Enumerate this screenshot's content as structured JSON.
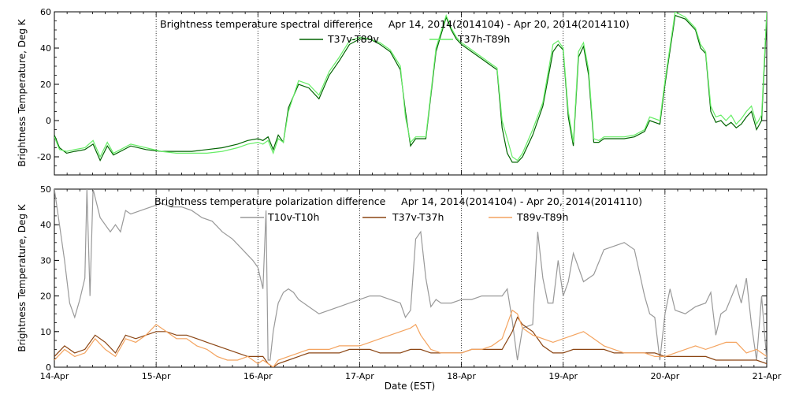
{
  "chart_data": [
    {
      "type": "line",
      "title": "Brightness temperature spectral difference     Apr 14, 2014(2014104) - Apr 20, 2014(2014110)",
      "ylabel": "Brightness Temperature, Deg K",
      "xlabel": "",
      "ylim": [
        -30,
        60
      ],
      "xlim": [
        0,
        7
      ],
      "yticks": [
        -20,
        0,
        20,
        40,
        60
      ],
      "grid": "vertical dotted at day boundaries",
      "legend_position": "top-center",
      "series": [
        {
          "name": "T37v-T89v",
          "color": "#006400",
          "x": [
            0.0,
            0.05,
            0.12,
            0.2,
            0.3,
            0.38,
            0.45,
            0.52,
            0.58,
            0.65,
            0.75,
            0.9,
            1.05,
            1.2,
            1.35,
            1.5,
            1.65,
            1.8,
            1.9,
            2.0,
            2.05,
            2.1,
            2.15,
            2.2,
            2.25,
            2.3,
            2.4,
            2.5,
            2.6,
            2.7,
            2.8,
            2.9,
            3.0,
            3.1,
            3.2,
            3.3,
            3.4,
            3.45,
            3.5,
            3.55,
            3.65,
            3.75,
            3.85,
            3.9,
            3.95,
            4.0,
            4.1,
            4.2,
            4.3,
            4.35,
            4.4,
            4.45,
            4.5,
            4.55,
            4.6,
            4.7,
            4.8,
            4.9,
            4.95,
            5.0,
            5.05,
            5.1,
            5.15,
            5.2,
            5.25,
            5.3,
            5.35,
            5.4,
            5.5,
            5.6,
            5.7,
            5.8,
            5.85,
            5.95,
            6.0,
            6.1,
            6.2,
            6.3,
            6.35,
            6.4,
            6.45,
            6.5,
            6.55,
            6.6,
            6.65,
            6.7,
            6.75,
            6.8,
            6.85,
            6.9,
            6.95,
            7.0
          ],
          "values": [
            -8,
            -15,
            -18,
            -17,
            -16,
            -13,
            -22,
            -14,
            -19,
            -17,
            -14,
            -16,
            -17,
            -17,
            -17,
            -16,
            -15,
            -13,
            -11,
            -10,
            -11,
            -9,
            -16,
            -8,
            -12,
            7,
            20,
            18,
            12,
            25,
            33,
            42,
            45,
            45,
            42,
            38,
            28,
            5,
            -14,
            -10,
            -10,
            38,
            57,
            50,
            45,
            42,
            38,
            34,
            30,
            28,
            -4,
            -18,
            -23,
            -23,
            -20,
            -8,
            8,
            38,
            42,
            39,
            2,
            -14,
            35,
            41,
            25,
            -12,
            -12,
            -10,
            -10,
            -10,
            -9,
            -6,
            0,
            -2,
            20,
            58,
            56,
            50,
            40,
            37,
            5,
            -1,
            0,
            -3,
            -1,
            -4,
            -2,
            2,
            5,
            -5,
            0,
            57
          ],
          "interpretation": "approximate values read from plot"
        },
        {
          "name": "T37h-T89h",
          "color": "#66ee66",
          "x": [
            0.0,
            0.05,
            0.12,
            0.2,
            0.3,
            0.38,
            0.45,
            0.52,
            0.58,
            0.65,
            0.75,
            0.9,
            1.05,
            1.2,
            1.35,
            1.5,
            1.65,
            1.8,
            1.9,
            2.0,
            2.05,
            2.1,
            2.15,
            2.2,
            2.25,
            2.3,
            2.4,
            2.5,
            2.6,
            2.7,
            2.8,
            2.9,
            3.0,
            3.1,
            3.2,
            3.3,
            3.4,
            3.45,
            3.5,
            3.55,
            3.65,
            3.75,
            3.85,
            3.9,
            3.95,
            4.0,
            4.1,
            4.2,
            4.3,
            4.35,
            4.4,
            4.45,
            4.5,
            4.55,
            4.6,
            4.7,
            4.8,
            4.9,
            4.95,
            5.0,
            5.05,
            5.1,
            5.15,
            5.2,
            5.25,
            5.3,
            5.35,
            5.4,
            5.5,
            5.6,
            5.7,
            5.8,
            5.85,
            5.95,
            6.0,
            6.1,
            6.2,
            6.3,
            6.35,
            6.4,
            6.45,
            6.5,
            6.55,
            6.6,
            6.65,
            6.7,
            6.75,
            6.8,
            6.85,
            6.9,
            6.95,
            7.0
          ],
          "values": [
            -9,
            -16,
            -17,
            -16,
            -15,
            -11,
            -20,
            -12,
            -18,
            -16,
            -13,
            -15,
            -17,
            -18,
            -18,
            -18,
            -17,
            -15,
            -13,
            -12,
            -13,
            -11,
            -18,
            -10,
            -12,
            5,
            22,
            20,
            14,
            27,
            35,
            44,
            46,
            45,
            43,
            39,
            30,
            2,
            -12,
            -9,
            -9,
            40,
            58,
            51,
            46,
            43,
            39,
            35,
            31,
            29,
            0,
            -10,
            -20,
            -22,
            -18,
            -5,
            10,
            42,
            44,
            40,
            5,
            -12,
            38,
            43,
            28,
            -10,
            -11,
            -9,
            -9,
            -9,
            -8,
            -5,
            2,
            0,
            22,
            60,
            57,
            51,
            42,
            38,
            8,
            2,
            3,
            0,
            3,
            -2,
            1,
            5,
            8,
            -2,
            3,
            60
          ],
          "interpretation": "approximate values read from plot"
        }
      ]
    },
    {
      "type": "line",
      "title": "Brightness temperature polarization difference     Apr 14, 2014(2014104) - Apr 20, 2014(2014110)",
      "ylabel": "Brightness Temperature, Deg K",
      "xlabel": "Date (EST)",
      "ylim": [
        0,
        50
      ],
      "xlim": [
        0,
        7
      ],
      "yticks": [
        0,
        10,
        20,
        30,
        40,
        50
      ],
      "categories": [
        "14-Apr",
        "15-Apr",
        "16-Apr",
        "17-Apr",
        "18-Apr",
        "19-Apr",
        "20-Apr",
        "21-Apr"
      ],
      "grid": "vertical dotted at day boundaries",
      "legend_position": "top-center",
      "series": [
        {
          "name": "T10v-T10h",
          "color": "#999999",
          "x": [
            0.0,
            0.05,
            0.1,
            0.15,
            0.2,
            0.25,
            0.3,
            0.32,
            0.35,
            0.38,
            0.45,
            0.55,
            0.6,
            0.65,
            0.7,
            0.75,
            0.85,
            0.95,
            1.05,
            1.15,
            1.25,
            1.35,
            1.45,
            1.55,
            1.65,
            1.75,
            1.85,
            1.95,
            2.0,
            2.05,
            2.08,
            2.1,
            2.12,
            2.15,
            2.2,
            2.25,
            2.3,
            2.35,
            2.4,
            2.5,
            2.6,
            2.7,
            2.8,
            2.9,
            3.0,
            3.1,
            3.2,
            3.3,
            3.4,
            3.45,
            3.5,
            3.55,
            3.6,
            3.65,
            3.7,
            3.75,
            3.8,
            3.9,
            4.0,
            4.1,
            4.2,
            4.3,
            4.4,
            4.45,
            4.5,
            4.55,
            4.6,
            4.7,
            4.75,
            4.8,
            4.85,
            4.9,
            4.95,
            5.0,
            5.05,
            5.1,
            5.15,
            5.2,
            5.3,
            5.4,
            5.5,
            5.6,
            5.7,
            5.8,
            5.85,
            5.9,
            5.95,
            6.0,
            6.05,
            6.1,
            6.2,
            6.3,
            6.4,
            6.45,
            6.5,
            6.55,
            6.6,
            6.7,
            6.75,
            6.8,
            6.85,
            6.9,
            6.95,
            7.0
          ],
          "values": [
            50,
            40,
            30,
            18,
            14,
            19,
            25,
            50,
            20,
            50,
            42,
            38,
            40,
            38,
            44,
            43,
            44,
            45,
            46,
            45,
            45,
            44,
            42,
            41,
            38,
            36,
            33,
            30,
            28,
            22,
            44,
            2,
            2,
            10,
            18,
            21,
            22,
            21,
            19,
            17,
            15,
            16,
            17,
            18,
            19,
            20,
            20,
            19,
            18,
            14,
            16,
            36,
            38,
            25,
            17,
            19,
            18,
            18,
            19,
            19,
            20,
            20,
            20,
            22,
            13,
            2,
            11,
            12,
            38,
            25,
            18,
            18,
            30,
            20,
            24,
            32,
            28,
            24,
            26,
            33,
            34,
            35,
            33,
            20,
            15,
            14,
            2,
            15,
            22,
            16,
            15,
            17,
            18,
            21,
            9,
            15,
            16,
            23,
            18,
            25,
            12,
            2,
            20,
            2
          ],
          "interpretation": "approximate values read from plot"
        },
        {
          "name": "T37v-T37h",
          "color": "#8b4513",
          "x": [
            0.0,
            0.1,
            0.2,
            0.3,
            0.4,
            0.5,
            0.6,
            0.7,
            0.8,
            0.9,
            1.0,
            1.1,
            1.2,
            1.3,
            1.4,
            1.5,
            1.6,
            1.7,
            1.8,
            1.9,
            2.0,
            2.05,
            2.1,
            2.15,
            2.2,
            2.3,
            2.4,
            2.5,
            2.6,
            2.7,
            2.8,
            2.9,
            3.0,
            3.1,
            3.2,
            3.3,
            3.4,
            3.5,
            3.6,
            3.7,
            3.8,
            3.9,
            4.0,
            4.1,
            4.2,
            4.3,
            4.4,
            4.5,
            4.55,
            4.6,
            4.7,
            4.8,
            4.9,
            5.0,
            5.1,
            5.2,
            5.3,
            5.4,
            5.5,
            5.6,
            5.7,
            5.8,
            5.9,
            6.0,
            6.1,
            6.2,
            6.3,
            6.4,
            6.5,
            6.6,
            6.7,
            6.8,
            6.9,
            7.0
          ],
          "values": [
            3,
            6,
            4,
            5,
            9,
            7,
            4,
            9,
            8,
            9,
            10,
            10,
            9,
            9,
            8,
            7,
            6,
            5,
            4,
            3,
            3,
            3,
            1,
            0,
            1,
            2,
            3,
            4,
            4,
            4,
            4,
            5,
            5,
            5,
            4,
            4,
            4,
            5,
            5,
            4,
            4,
            4,
            4,
            5,
            5,
            5,
            5,
            10,
            14,
            12,
            10,
            6,
            4,
            4,
            5,
            5,
            5,
            5,
            4,
            4,
            4,
            4,
            4,
            3,
            3,
            3,
            3,
            3,
            2,
            2,
            2,
            2,
            2,
            1
          ],
          "interpretation": "approximate values read from plot"
        },
        {
          "name": "T89v-T89h",
          "color": "#f4a460",
          "x": [
            0.0,
            0.1,
            0.2,
            0.3,
            0.4,
            0.5,
            0.6,
            0.7,
            0.8,
            0.9,
            1.0,
            1.1,
            1.2,
            1.3,
            1.4,
            1.5,
            1.6,
            1.7,
            1.8,
            1.9,
            2.0,
            2.05,
            2.1,
            2.15,
            2.2,
            2.3,
            2.4,
            2.5,
            2.6,
            2.7,
            2.8,
            2.9,
            3.0,
            3.1,
            3.2,
            3.3,
            3.4,
            3.5,
            3.55,
            3.6,
            3.7,
            3.8,
            3.9,
            4.0,
            4.1,
            4.2,
            4.3,
            4.4,
            4.5,
            4.55,
            4.6,
            4.7,
            4.8,
            4.9,
            5.0,
            5.1,
            5.2,
            5.3,
            5.4,
            5.5,
            5.6,
            5.7,
            5.8,
            5.9,
            6.0,
            6.1,
            6.2,
            6.3,
            6.4,
            6.5,
            6.6,
            6.7,
            6.8,
            6.9,
            7.0
          ],
          "values": [
            2,
            5,
            3,
            4,
            8,
            5,
            3,
            8,
            7,
            9,
            12,
            10,
            8,
            8,
            6,
            5,
            3,
            2,
            2,
            3,
            1,
            2,
            1,
            0,
            2,
            3,
            4,
            5,
            5,
            5,
            6,
            6,
            6,
            7,
            8,
            9,
            10,
            11,
            12,
            9,
            5,
            4,
            4,
            4,
            5,
            5,
            6,
            8,
            16,
            15,
            11,
            9,
            8,
            7,
            8,
            9,
            10,
            8,
            6,
            5,
            4,
            4,
            4,
            3,
            3,
            4,
            5,
            6,
            5,
            6,
            7,
            7,
            4,
            5,
            3
          ],
          "interpretation": "approximate values read from plot"
        }
      ]
    }
  ]
}
